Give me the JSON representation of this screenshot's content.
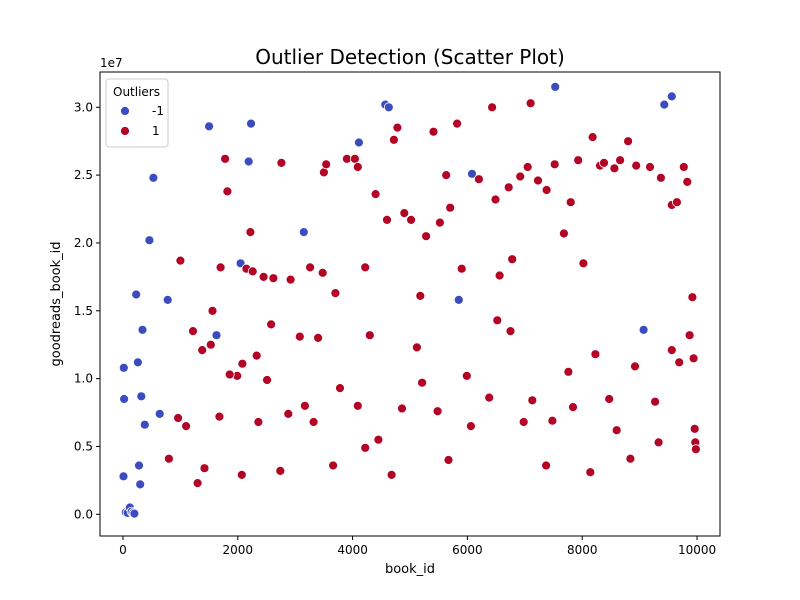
{
  "chart_data": {
    "type": "scatter",
    "title": "Outlier Detection (Scatter Plot)",
    "xlabel": "book_id",
    "ylabel": "goodreads_book_id",
    "y_offset_text": "1e7",
    "xlim": [
      -400,
      10400
    ],
    "ylim": [
      -1600000,
      32600000
    ],
    "x_ticks": [
      0,
      2000,
      4000,
      6000,
      8000,
      10000
    ],
    "x_tick_labels": [
      "0",
      "2000",
      "4000",
      "6000",
      "8000",
      "10000"
    ],
    "y_ticks": [
      0,
      5000000,
      10000000,
      15000000,
      20000000,
      25000000,
      30000000
    ],
    "y_tick_labels": [
      "0.0",
      "0.5",
      "1.0",
      "1.5",
      "2.0",
      "2.5",
      "3.0"
    ],
    "grid": false,
    "legend": {
      "title": "Outliers",
      "placement": "top-left",
      "entries": [
        {
          "label": "-1",
          "color": "#3b4cc0"
        },
        {
          "label": "1",
          "color": "#b40426"
        }
      ]
    },
    "series": [
      {
        "name": "-1",
        "color": "#3b4cc0",
        "points": [
          [
            10,
            2800000
          ],
          [
            15,
            10800000
          ],
          [
            20,
            8500000
          ],
          [
            50,
            150000
          ],
          [
            80,
            100000
          ],
          [
            120,
            500000
          ],
          [
            150,
            200000
          ],
          [
            180,
            100000
          ],
          [
            200,
            50000
          ],
          [
            230,
            16200000
          ],
          [
            260,
            11200000
          ],
          [
            280,
            3600000
          ],
          [
            300,
            2200000
          ],
          [
            320,
            8700000
          ],
          [
            340,
            13600000
          ],
          [
            380,
            6600000
          ],
          [
            460,
            20200000
          ],
          [
            530,
            24800000
          ],
          [
            640,
            7400000
          ],
          [
            780,
            15800000
          ],
          [
            1500,
            28600000
          ],
          [
            1630,
            13200000
          ],
          [
            2050,
            18500000
          ],
          [
            2190,
            26000000
          ],
          [
            2230,
            28800000
          ],
          [
            3150,
            20800000
          ],
          [
            4110,
            27400000
          ],
          [
            4570,
            30200000
          ],
          [
            4630,
            30000000
          ],
          [
            5850,
            15800000
          ],
          [
            6080,
            25100000
          ],
          [
            7530,
            31500000
          ],
          [
            9070,
            13600000
          ],
          [
            9430,
            30200000
          ],
          [
            9560,
            30800000
          ]
        ]
      },
      {
        "name": "1",
        "color": "#b40426",
        "points": [
          [
            1000,
            18700000
          ],
          [
            1220,
            13500000
          ],
          [
            1380,
            12100000
          ],
          [
            1530,
            12500000
          ],
          [
            1560,
            15000000
          ],
          [
            1700,
            18200000
          ],
          [
            1780,
            26200000
          ],
          [
            1820,
            23800000
          ],
          [
            1990,
            10200000
          ],
          [
            2080,
            11100000
          ],
          [
            2150,
            18100000
          ],
          [
            2220,
            20800000
          ],
          [
            2260,
            17900000
          ],
          [
            2330,
            11700000
          ],
          [
            2450,
            17500000
          ],
          [
            2580,
            14000000
          ],
          [
            2620,
            17400000
          ],
          [
            2760,
            25900000
          ],
          [
            2920,
            17300000
          ],
          [
            3080,
            13100000
          ],
          [
            3260,
            18200000
          ],
          [
            3400,
            13000000
          ],
          [
            3480,
            17800000
          ],
          [
            3500,
            25200000
          ],
          [
            3540,
            25800000
          ],
          [
            3700,
            16300000
          ],
          [
            3900,
            26200000
          ],
          [
            4040,
            26200000
          ],
          [
            4090,
            25600000
          ],
          [
            4220,
            18200000
          ],
          [
            4300,
            13200000
          ],
          [
            4400,
            23600000
          ],
          [
            4600,
            21700000
          ],
          [
            4720,
            27600000
          ],
          [
            4780,
            28500000
          ],
          [
            4900,
            22200000
          ],
          [
            5020,
            21700000
          ],
          [
            5180,
            16100000
          ],
          [
            5280,
            20500000
          ],
          [
            5410,
            28200000
          ],
          [
            5520,
            21500000
          ],
          [
            5630,
            25000000
          ],
          [
            5700,
            22600000
          ],
          [
            5820,
            28800000
          ],
          [
            5900,
            18100000
          ],
          [
            6200,
            24700000
          ],
          [
            6430,
            30000000
          ],
          [
            6490,
            23200000
          ],
          [
            6560,
            17600000
          ],
          [
            6720,
            24100000
          ],
          [
            6780,
            18800000
          ],
          [
            6920,
            24900000
          ],
          [
            7050,
            25600000
          ],
          [
            7100,
            30300000
          ],
          [
            7230,
            24600000
          ],
          [
            7380,
            23900000
          ],
          [
            7520,
            25800000
          ],
          [
            7680,
            20700000
          ],
          [
            7800,
            23000000
          ],
          [
            7930,
            26100000
          ],
          [
            8020,
            18500000
          ],
          [
            8180,
            27800000
          ],
          [
            8310,
            25700000
          ],
          [
            8380,
            25900000
          ],
          [
            8560,
            25500000
          ],
          [
            8660,
            26100000
          ],
          [
            8800,
            27500000
          ],
          [
            8940,
            25700000
          ],
          [
            9180,
            25600000
          ],
          [
            9370,
            24800000
          ],
          [
            9560,
            22800000
          ],
          [
            9650,
            23000000
          ],
          [
            9770,
            25600000
          ],
          [
            9830,
            24500000
          ],
          [
            9920,
            16000000
          ],
          [
            9960,
            6300000
          ],
          [
            9970,
            5300000
          ],
          [
            9980,
            4800000
          ],
          [
            9940,
            11500000
          ],
          [
            9870,
            13200000
          ],
          [
            1100,
            6500000
          ],
          [
            1420,
            3400000
          ],
          [
            1680,
            7200000
          ],
          [
            2070,
            2900000
          ],
          [
            2510,
            9900000
          ],
          [
            2880,
            7400000
          ],
          [
            3170,
            8000000
          ],
          [
            3660,
            3600000
          ],
          [
            4090,
            8000000
          ],
          [
            4450,
            5500000
          ],
          [
            4860,
            7800000
          ],
          [
            5210,
            9700000
          ],
          [
            5670,
            4000000
          ],
          [
            6060,
            6500000
          ],
          [
            6380,
            8600000
          ],
          [
            6750,
            13500000
          ],
          [
            7130,
            8400000
          ],
          [
            7480,
            6900000
          ],
          [
            7840,
            7900000
          ],
          [
            8230,
            11800000
          ],
          [
            8600,
            6200000
          ],
          [
            8920,
            10900000
          ],
          [
            9330,
            5300000
          ],
          [
            9560,
            12100000
          ],
          [
            800,
            4100000
          ],
          [
            960,
            7100000
          ],
          [
            1300,
            2300000
          ],
          [
            1860,
            10300000
          ],
          [
            2360,
            6800000
          ],
          [
            2740,
            3200000
          ],
          [
            3320,
            6800000
          ],
          [
            3780,
            9300000
          ],
          [
            4220,
            4900000
          ],
          [
            4680,
            2900000
          ],
          [
            5120,
            12300000
          ],
          [
            5480,
            7600000
          ],
          [
            5990,
            10200000
          ],
          [
            6520,
            14300000
          ],
          [
            6980,
            6800000
          ],
          [
            7370,
            3600000
          ],
          [
            7760,
            10500000
          ],
          [
            8140,
            3100000
          ],
          [
            8470,
            8500000
          ],
          [
            8840,
            4100000
          ],
          [
            9270,
            8300000
          ],
          [
            9690,
            11200000
          ]
        ]
      }
    ]
  }
}
